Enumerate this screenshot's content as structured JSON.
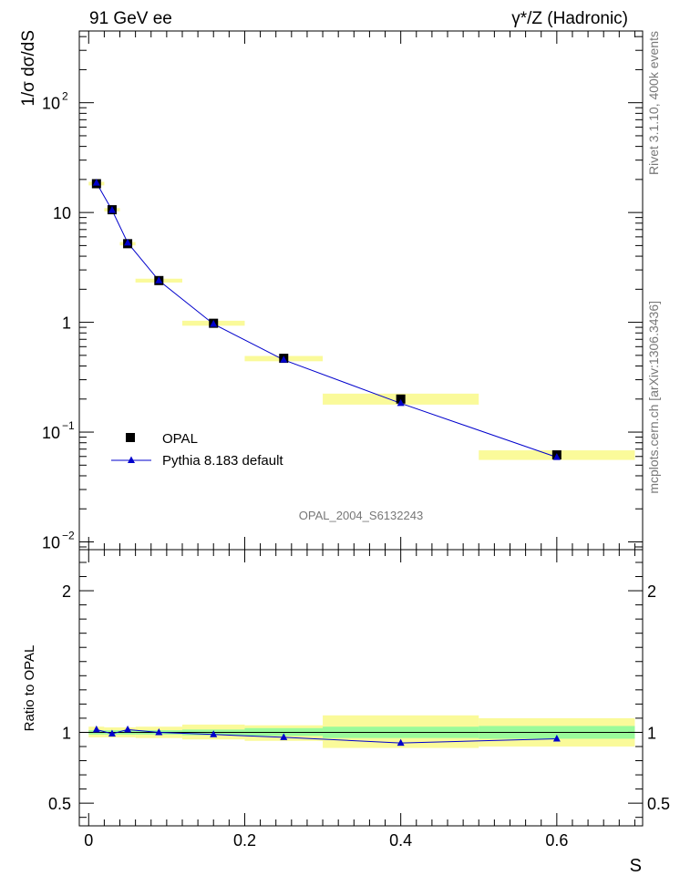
{
  "chart_data": {
    "type": "line",
    "title_left": "91 GeV ee",
    "title_right": "γ*/Z (Hadronic)",
    "ylabel": "1/σ dσ/dS",
    "xlabel": "S",
    "ratio_ylabel": "Ratio to OPAL",
    "watermark": "OPAL_2004_S6132243",
    "side_label_top": "Rivet 3.1.10,  400k events",
    "side_label_bottom": "mcplots.cern.ch [arXiv:1306.3436]",
    "x_range": [
      -0.012,
      0.71
    ],
    "main_y_scale": "log",
    "main_y_range": [
      0.0085,
      450
    ],
    "main_y_ticks": [
      {
        "value": 0.01,
        "base": "10",
        "exp": "−2"
      },
      {
        "value": 0.1,
        "base": "10",
        "exp": "−1"
      },
      {
        "value": 1,
        "base": "1",
        "exp": ""
      },
      {
        "value": 10,
        "base": "10",
        "exp": ""
      },
      {
        "value": 100,
        "base": "10",
        "exp": "2"
      }
    ],
    "ratio_y_range": [
      0.34,
      2.29
    ],
    "ratio_y_ticks": [
      "0.5",
      "1",
      "2"
    ],
    "x_ticks": [
      "0",
      "0.2",
      "0.4",
      "0.6"
    ],
    "legend": [
      {
        "name": "OPAL",
        "marker": "square",
        "color": "#000000"
      },
      {
        "name": "Pythia 8.183 default",
        "marker": "triangle",
        "color": "#0000cc"
      }
    ],
    "data": {
      "name": "OPAL",
      "x": [
        0.01,
        0.03,
        0.05,
        0.09,
        0.16,
        0.25,
        0.4,
        0.6
      ],
      "y": [
        18.3,
        10.6,
        5.2,
        2.4,
        0.98,
        0.47,
        0.2,
        0.062
      ]
    },
    "mc": {
      "name": "Pythia 8.183 default",
      "x": [
        0.01,
        0.03,
        0.05,
        0.09,
        0.16,
        0.25,
        0.4,
        0.6
      ],
      "y": [
        18.6,
        10.5,
        5.3,
        2.4,
        0.965,
        0.455,
        0.183,
        0.059
      ],
      "ratio": [
        1.02,
        0.99,
        1.02,
        1.0,
        0.985,
        0.965,
        0.925,
        0.955
      ]
    },
    "bands": [
      {
        "x0": 0.0,
        "x1": 0.02,
        "stat_lo": 0.985,
        "stat_hi": 1.015,
        "tot_lo": 0.965,
        "tot_hi": 1.04
      },
      {
        "x0": 0.02,
        "x1": 0.04,
        "stat_lo": 0.985,
        "stat_hi": 1.015,
        "tot_lo": 0.965,
        "tot_hi": 1.035
      },
      {
        "x0": 0.04,
        "x1": 0.06,
        "stat_lo": 0.985,
        "stat_hi": 1.015,
        "tot_lo": 0.965,
        "tot_hi": 1.035
      },
      {
        "x0": 0.06,
        "x1": 0.12,
        "stat_lo": 0.985,
        "stat_hi": 1.015,
        "tot_lo": 0.96,
        "tot_hi": 1.04
      },
      {
        "x0": 0.12,
        "x1": 0.2,
        "stat_lo": 0.98,
        "stat_hi": 1.02,
        "tot_lo": 0.95,
        "tot_hi": 1.055
      },
      {
        "x0": 0.2,
        "x1": 0.3,
        "stat_lo": 0.975,
        "stat_hi": 1.03,
        "tot_lo": 0.94,
        "tot_hi": 1.05
      },
      {
        "x0": 0.3,
        "x1": 0.5,
        "stat_lo": 0.96,
        "stat_hi": 1.04,
        "tot_lo": 0.89,
        "tot_hi": 1.12
      },
      {
        "x0": 0.5,
        "x1": 0.7,
        "stat_lo": 0.955,
        "stat_hi": 1.045,
        "tot_lo": 0.9,
        "tot_hi": 1.1
      }
    ],
    "colors": {
      "stat_band": "#9afa9a",
      "total_band": "#fafa9a",
      "mc_line": "#0000cc",
      "data_marker": "#000000"
    }
  }
}
